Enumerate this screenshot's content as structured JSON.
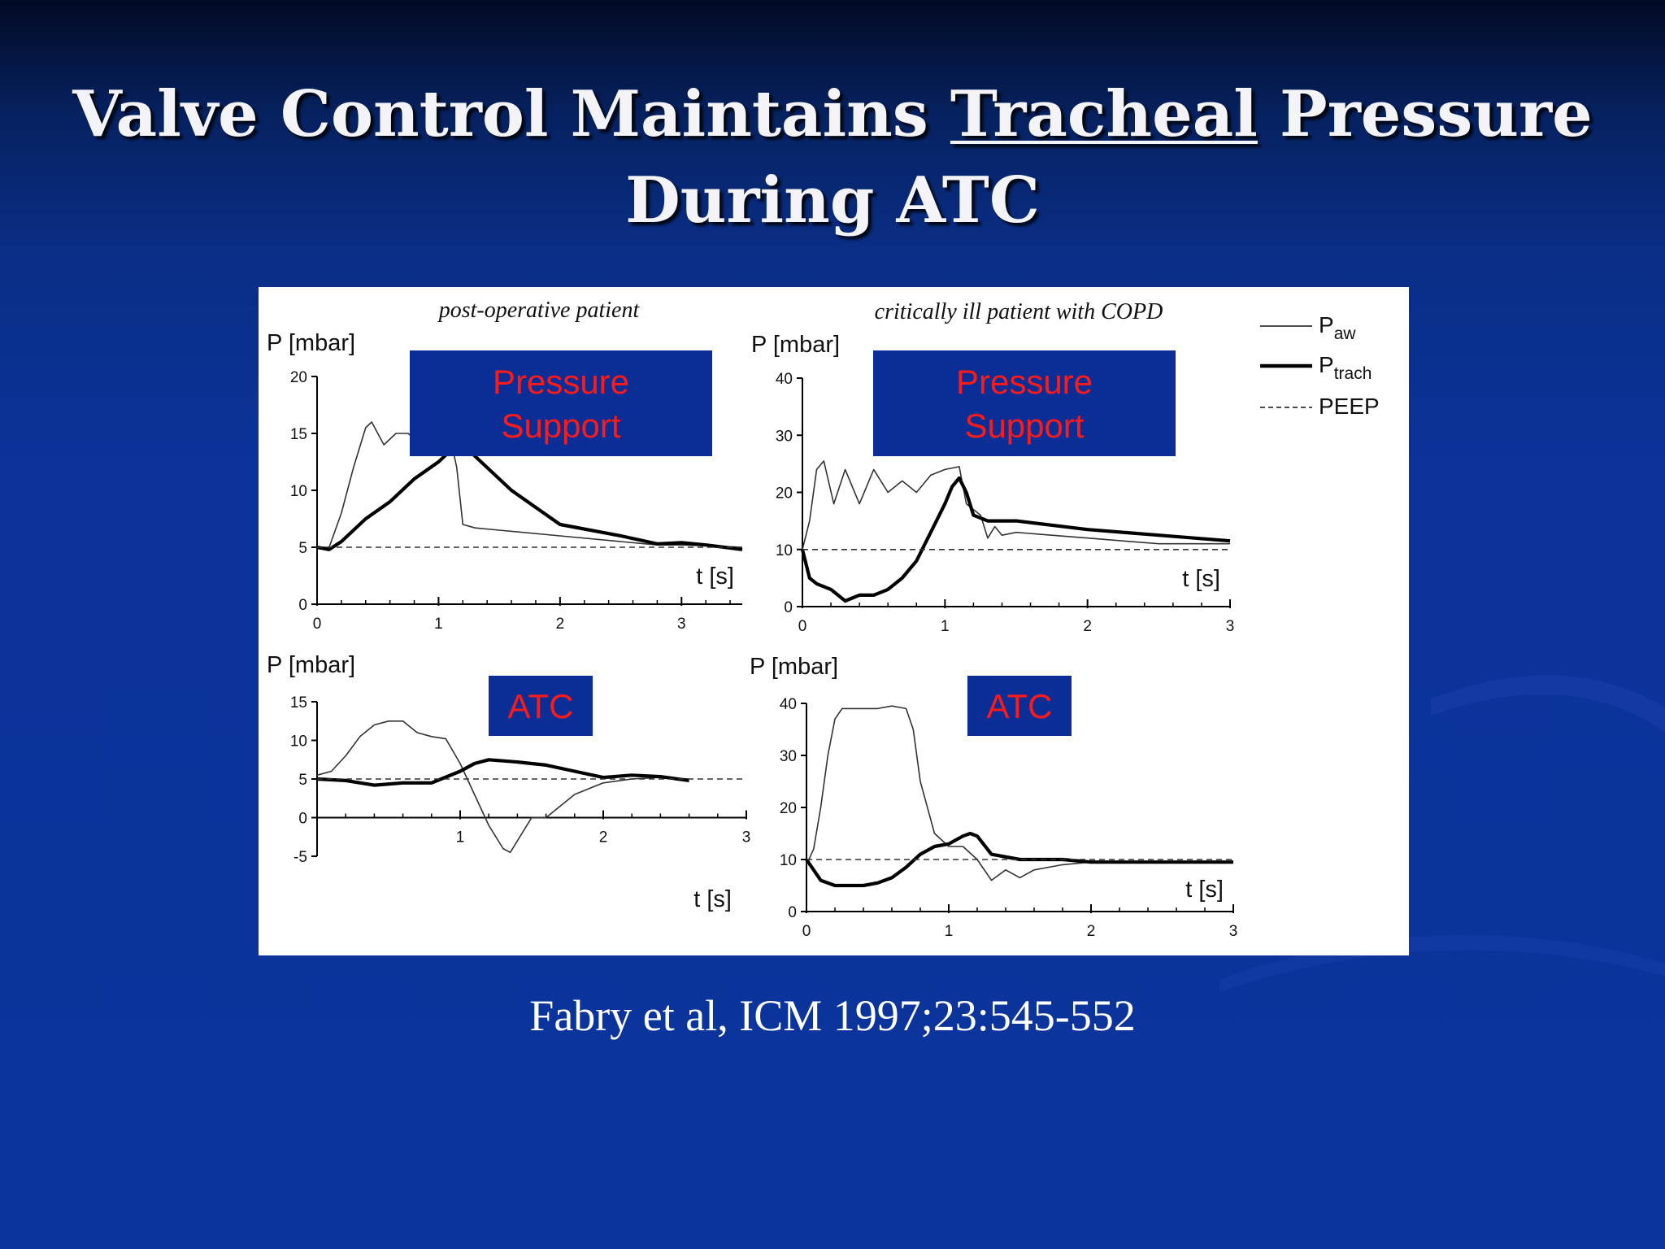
{
  "slide": {
    "title_part1": "Valve Control Maintains ",
    "title_underlined": "Tracheal",
    "title_part2": " Pressure",
    "title_line2": "During ATC",
    "citation": "Fabry et al, ICM 1997;23:545-552"
  },
  "figure": {
    "col_header_left": "post-operative patient",
    "col_header_right": "critically ill patient with COPD",
    "legend": [
      {
        "main": "P",
        "sub": "aw",
        "style": "thin"
      },
      {
        "main": "P",
        "sub": "trach",
        "style": "thick"
      },
      {
        "main": "PEEP",
        "sub": "",
        "style": "dashed"
      }
    ]
  },
  "chart_data": [
    {
      "type": "line",
      "label": "Pressure Support",
      "ylabel": "P [mbar]",
      "xlabel": "t [s]",
      "xlim": [
        0,
        3.5
      ],
      "ylim": [
        0,
        20
      ],
      "xticks": [
        0,
        1,
        2,
        3
      ],
      "yticks": [
        0,
        5,
        10,
        15,
        20
      ],
      "series": [
        {
          "name": "Paw",
          "x": [
            0,
            0.1,
            0.2,
            0.3,
            0.4,
            0.45,
            0.55,
            0.65,
            0.75,
            0.85,
            1.0,
            1.1,
            1.15,
            1.2,
            1.3,
            1.5,
            2.0,
            2.5,
            2.8,
            3.0,
            3.3,
            3.5
          ],
          "values": [
            5,
            5,
            8,
            12,
            15.5,
            16,
            14,
            15,
            15,
            14,
            14.5,
            14.5,
            12,
            7,
            6.7,
            6.5,
            6,
            5.5,
            5.2,
            5.2,
            5.1,
            5
          ]
        },
        {
          "name": "Ptrach",
          "x": [
            0,
            0.1,
            0.2,
            0.4,
            0.6,
            0.8,
            1.0,
            1.1,
            1.15,
            1.25,
            1.4,
            1.6,
            2.0,
            2.5,
            2.8,
            3.0,
            3.2,
            3.5
          ],
          "values": [
            5,
            4.8,
            5.5,
            7.5,
            9,
            11,
            12.5,
            13.5,
            14,
            13.5,
            12,
            10,
            7,
            6,
            5.3,
            5.4,
            5.2,
            4.8
          ]
        },
        {
          "name": "PEEP",
          "x": [
            0,
            3.5
          ],
          "values": [
            5,
            5
          ]
        }
      ]
    },
    {
      "type": "line",
      "label": "Pressure Support",
      "ylabel": "P [mbar]",
      "xlabel": "t [s]",
      "xlim": [
        0,
        3
      ],
      "ylim": [
        0,
        40
      ],
      "xticks": [
        0,
        1,
        2,
        3
      ],
      "yticks": [
        0,
        10,
        20,
        30,
        40
      ],
      "series": [
        {
          "name": "Paw",
          "x": [
            0,
            0.05,
            0.1,
            0.15,
            0.22,
            0.3,
            0.4,
            0.5,
            0.6,
            0.7,
            0.8,
            0.9,
            1.0,
            1.1,
            1.15,
            1.25,
            1.3,
            1.35,
            1.4,
            1.5,
            2.0,
            2.5,
            3.0
          ],
          "values": [
            10,
            15,
            24,
            25.5,
            18,
            24,
            18,
            24,
            20,
            22,
            20,
            23,
            24,
            24.5,
            18,
            16,
            12,
            14,
            12.5,
            13,
            12,
            11,
            11
          ]
        },
        {
          "name": "Ptrach",
          "x": [
            0,
            0.05,
            0.1,
            0.2,
            0.3,
            0.4,
            0.5,
            0.6,
            0.7,
            0.8,
            0.9,
            1.0,
            1.05,
            1.1,
            1.15,
            1.2,
            1.3,
            1.5,
            2.0,
            2.5,
            3.0
          ],
          "values": [
            10,
            5,
            4,
            3,
            1,
            2,
            2,
            3,
            5,
            8,
            13,
            18,
            21,
            22.5,
            20,
            16,
            15,
            15,
            13.5,
            12.5,
            11.5
          ]
        },
        {
          "name": "PEEP",
          "x": [
            0,
            3
          ],
          "values": [
            10,
            10
          ]
        }
      ]
    },
    {
      "type": "line",
      "label": "ATC",
      "ylabel": "P [mbar]",
      "xlabel": "t [s]",
      "xlim": [
        0,
        3
      ],
      "ylim": [
        -5,
        15
      ],
      "xticks": [
        1,
        2,
        3
      ],
      "yticks": [
        -5,
        0,
        5,
        10,
        15
      ],
      "series": [
        {
          "name": "Paw",
          "x": [
            0,
            0.1,
            0.2,
            0.3,
            0.4,
            0.5,
            0.6,
            0.7,
            0.8,
            0.9,
            1.0,
            1.1,
            1.2,
            1.3,
            1.35,
            1.4,
            1.5,
            1.6,
            1.7,
            1.8,
            2.0,
            2.2,
            2.4,
            2.6
          ],
          "values": [
            5.5,
            6,
            8,
            10.5,
            12,
            12.5,
            12.5,
            11,
            10.5,
            10.2,
            7,
            3,
            -1,
            -4,
            -4.5,
            -3,
            0,
            0,
            1.5,
            3,
            4.5,
            5,
            5.2,
            5
          ]
        },
        {
          "name": "Ptrach",
          "x": [
            0,
            0.2,
            0.4,
            0.6,
            0.8,
            1.0,
            1.1,
            1.2,
            1.4,
            1.6,
            1.8,
            2.0,
            2.2,
            2.4,
            2.6
          ],
          "values": [
            5,
            4.8,
            4.2,
            4.5,
            4.5,
            6,
            7,
            7.5,
            7.2,
            6.8,
            6,
            5.2,
            5.5,
            5.3,
            4.8
          ]
        },
        {
          "name": "PEEP",
          "x": [
            0,
            3
          ],
          "values": [
            5,
            5
          ]
        }
      ]
    },
    {
      "type": "line",
      "label": "ATC",
      "ylabel": "P [mbar]",
      "xlabel": "t [s]",
      "xlim": [
        0,
        3
      ],
      "ylim": [
        0,
        40
      ],
      "xticks": [
        0,
        1,
        2,
        3
      ],
      "yticks": [
        0,
        10,
        20,
        30,
        40
      ],
      "series": [
        {
          "name": "Paw",
          "x": [
            0,
            0.05,
            0.1,
            0.15,
            0.2,
            0.25,
            0.3,
            0.4,
            0.5,
            0.6,
            0.7,
            0.75,
            0.8,
            0.9,
            1.0,
            1.1,
            1.2,
            1.3,
            1.4,
            1.5,
            1.6,
            1.8,
            2.0,
            2.5,
            3.0
          ],
          "values": [
            9,
            12,
            20,
            30,
            37,
            39,
            39,
            39,
            39,
            39.5,
            39,
            35,
            25,
            15,
            12.5,
            12.5,
            10,
            6,
            8,
            6.5,
            8,
            9,
            9.5,
            9.5,
            9.5
          ]
        },
        {
          "name": "Ptrach",
          "x": [
            0,
            0.1,
            0.2,
            0.3,
            0.4,
            0.5,
            0.6,
            0.7,
            0.8,
            0.9,
            1.0,
            1.1,
            1.15,
            1.2,
            1.3,
            1.5,
            1.8,
            2.0,
            2.5,
            3.0
          ],
          "values": [
            10,
            6,
            5,
            5,
            5,
            5.5,
            6.5,
            8.5,
            11,
            12.5,
            13,
            14.5,
            15,
            14.5,
            11,
            10,
            10,
            9.5,
            9.5,
            9.5
          ]
        },
        {
          "name": "PEEP",
          "x": [
            0,
            3
          ],
          "values": [
            10,
            10
          ]
        }
      ]
    }
  ]
}
